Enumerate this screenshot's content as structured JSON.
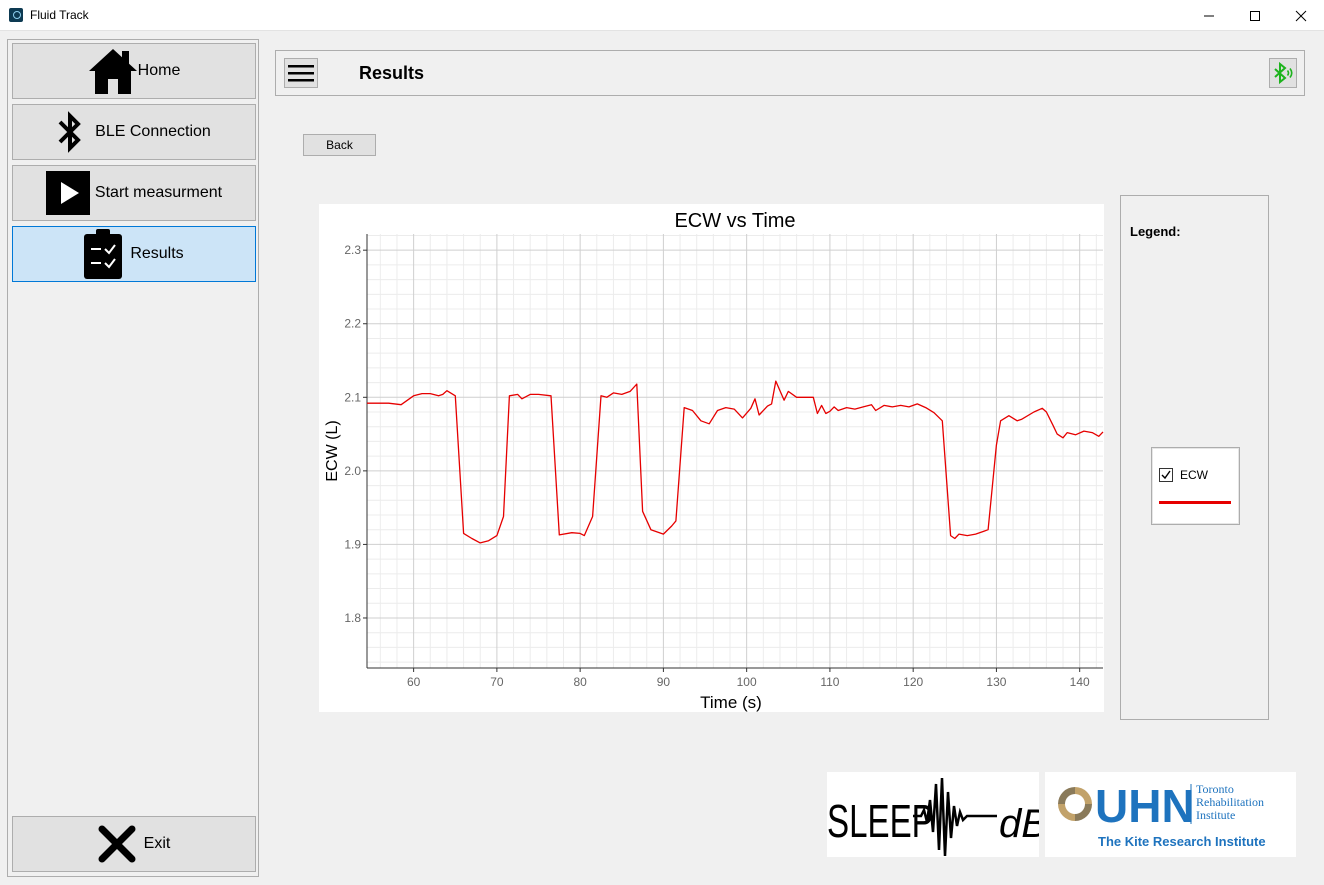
{
  "window": {
    "title": "Fluid Track"
  },
  "sidebar": {
    "items": [
      {
        "label": "Home",
        "icon": "home-icon"
      },
      {
        "label": "BLE Connection",
        "icon": "bluetooth-icon"
      },
      {
        "label": "Start measurment",
        "icon": "play-icon"
      },
      {
        "label": "Results",
        "icon": "clipboard-checklist-icon",
        "active": true
      }
    ],
    "exit": {
      "label": "Exit",
      "icon": "close-x-icon"
    }
  },
  "header": {
    "title": "Results",
    "bt_status_icon": "bluetooth-connected-icon",
    "bt_color": "#1db31d"
  },
  "back_label": "Back",
  "legend": {
    "title": "Legend:",
    "items": [
      {
        "label": "ECW",
        "checked": true,
        "color": "#e60000"
      }
    ]
  },
  "logos": {
    "sleep": {
      "left": "SLEEP",
      "right": "dB"
    },
    "uhn": {
      "main": "UHN",
      "line1": "Toronto",
      "line2": "Rehabilitation",
      "line3": "Institute",
      "tagline": "The Kite Research Institute"
    }
  },
  "chart_data": {
    "type": "line",
    "title": "ECW vs Time",
    "xlabel": "Time (s)",
    "ylabel": "ECW (L)",
    "xlim": [
      54.4,
      142.8
    ],
    "ylim": [
      1.732,
      2.322
    ],
    "x_ticks": [
      60,
      70,
      80,
      90,
      100,
      110,
      120,
      130,
      140
    ],
    "y_ticks": [
      1.8,
      1.9,
      2.0,
      2.1,
      2.2,
      2.3
    ],
    "y_tick_labels": [
      "1.8",
      "1.9",
      "2.0",
      "2.1",
      "2.2",
      "2.3"
    ],
    "grid": true,
    "series": [
      {
        "name": "ECW",
        "color": "#e60000",
        "points": [
          [
            54.4,
            2.092
          ],
          [
            57,
            2.092
          ],
          [
            58.5,
            2.09
          ],
          [
            60,
            2.102
          ],
          [
            61,
            2.105
          ],
          [
            62,
            2.105
          ],
          [
            63,
            2.102
          ],
          [
            63.5,
            2.104
          ],
          [
            64,
            2.109
          ],
          [
            65,
            2.102
          ],
          [
            66,
            1.915
          ],
          [
            67,
            1.908
          ],
          [
            68,
            1.902
          ],
          [
            69,
            1.905
          ],
          [
            70,
            1.912
          ],
          [
            70.8,
            1.938
          ],
          [
            71.5,
            2.102
          ],
          [
            72.5,
            2.104
          ],
          [
            73,
            2.098
          ],
          [
            74,
            2.104
          ],
          [
            75,
            2.104
          ],
          [
            76.5,
            2.102
          ],
          [
            77.5,
            1.913
          ],
          [
            79,
            1.916
          ],
          [
            80,
            1.915
          ],
          [
            80.5,
            1.912
          ],
          [
            81.5,
            1.938
          ],
          [
            82.5,
            2.102
          ],
          [
            83.2,
            2.1
          ],
          [
            84,
            2.106
          ],
          [
            85,
            2.104
          ],
          [
            86,
            2.108
          ],
          [
            86.8,
            2.118
          ],
          [
            87.5,
            1.945
          ],
          [
            88.5,
            1.92
          ],
          [
            90,
            1.914
          ],
          [
            91,
            1.925
          ],
          [
            91.5,
            1.932
          ],
          [
            92.5,
            2.086
          ],
          [
            93.5,
            2.082
          ],
          [
            94.5,
            2.068
          ],
          [
            95.5,
            2.064
          ],
          [
            96.5,
            2.082
          ],
          [
            97.5,
            2.086
          ],
          [
            98.5,
            2.084
          ],
          [
            99.5,
            2.072
          ],
          [
            100.5,
            2.085
          ],
          [
            101,
            2.098
          ],
          [
            101.5,
            2.076
          ],
          [
            102.5,
            2.088
          ],
          [
            103,
            2.091
          ],
          [
            103.5,
            2.122
          ],
          [
            104.5,
            2.096
          ],
          [
            105,
            2.108
          ],
          [
            106,
            2.1
          ],
          [
            107,
            2.1
          ],
          [
            108,
            2.1
          ],
          [
            108.5,
            2.078
          ],
          [
            109,
            2.089
          ],
          [
            109.5,
            2.078
          ],
          [
            110,
            2.081
          ],
          [
            110.5,
            2.087
          ],
          [
            111,
            2.082
          ],
          [
            112,
            2.086
          ],
          [
            113,
            2.084
          ],
          [
            114,
            2.087
          ],
          [
            115,
            2.09
          ],
          [
            115.5,
            2.082
          ],
          [
            116.5,
            2.089
          ],
          [
            117.5,
            2.087
          ],
          [
            118.5,
            2.089
          ],
          [
            119.5,
            2.087
          ],
          [
            120.5,
            2.091
          ],
          [
            121.5,
            2.086
          ],
          [
            122.5,
            2.079
          ],
          [
            123.5,
            2.068
          ],
          [
            124.5,
            1.912
          ],
          [
            125,
            1.908
          ],
          [
            125.5,
            1.914
          ],
          [
            126.5,
            1.912
          ],
          [
            127.5,
            1.914
          ],
          [
            128.5,
            1.918
          ],
          [
            129,
            1.92
          ],
          [
            130,
            2.035
          ],
          [
            130.5,
            2.068
          ],
          [
            131.5,
            2.075
          ],
          [
            132.5,
            2.068
          ],
          [
            133,
            2.07
          ],
          [
            134.5,
            2.08
          ],
          [
            135.5,
            2.085
          ],
          [
            136,
            2.08
          ],
          [
            136.8,
            2.062
          ],
          [
            137.3,
            2.05
          ],
          [
            138,
            2.045
          ],
          [
            138.5,
            2.052
          ],
          [
            139.5,
            2.049
          ],
          [
            140.5,
            2.054
          ],
          [
            141.5,
            2.052
          ],
          [
            142.3,
            2.047
          ],
          [
            142.8,
            2.053
          ]
        ]
      }
    ]
  }
}
